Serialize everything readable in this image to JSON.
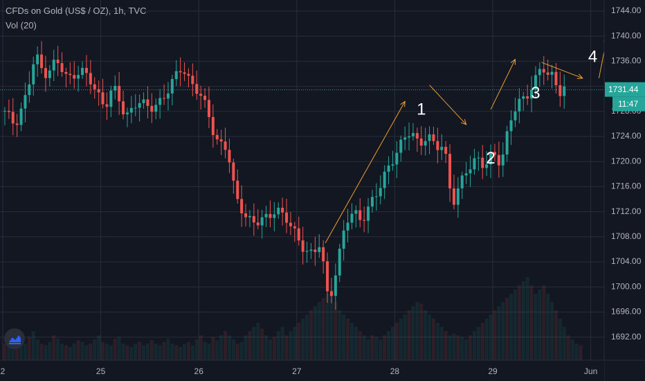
{
  "legend": {
    "title": "CFDs on Gold (US$ / OZ), 1h, TVC",
    "volume": "Vol (20)"
  },
  "price_tag": {
    "last": "1731.44",
    "countdown": "11:47",
    "color": "#26a69a"
  },
  "colors": {
    "background": "#131722",
    "grid": "#2a2e39",
    "up": "#26a69a",
    "down": "#ef5350",
    "annotation": "#f0a030",
    "text": "#b2b5be",
    "label_white": "#ffffff"
  },
  "icons": {
    "logo": "tradingview-logo-icon"
  },
  "chart_data": {
    "type": "candlestick",
    "instrument": "CFDs on Gold (US$ / OZ)",
    "interval": "1h",
    "source": "TVC",
    "xlabel": "",
    "ylabel": "",
    "ylim": [
      1689,
      1746
    ],
    "x_ticks": [
      {
        "label": "2",
        "t": 0
      },
      {
        "label": "25",
        "t": 24
      },
      {
        "label": "26",
        "t": 48
      },
      {
        "label": "27",
        "t": 72
      },
      {
        "label": "28",
        "t": 96
      },
      {
        "label": "29",
        "t": 120
      },
      {
        "label": "Jun",
        "t": 144
      }
    ],
    "y_ticks": [
      1692,
      1696,
      1700,
      1704,
      1708,
      1712,
      1716,
      1720,
      1724,
      1728,
      1732,
      1736,
      1740,
      1744
    ],
    "last_price": 1731.44,
    "grid": true,
    "overlay_labels": [
      {
        "text": "1",
        "t": 102.5,
        "price": 1728.2
      },
      {
        "text": "2",
        "t": 119.5,
        "price": 1720.4
      },
      {
        "text": "3",
        "t": 130.5,
        "price": 1730.8
      },
      {
        "text": "4",
        "t": 144.5,
        "price": 1736.6
      }
    ],
    "arrows": [
      {
        "from": [
          79,
          1707.0
        ],
        "to": [
          98.5,
          1729.6
        ]
      },
      {
        "from": [
          104.5,
          1732.2
        ],
        "to": [
          113.5,
          1725.9
        ]
      },
      {
        "from": [
          119.5,
          1728.3
        ],
        "to": [
          125.5,
          1736.3
        ]
      },
      {
        "from": [
          132,
          1735.8
        ],
        "to": [
          142,
          1733.3
        ]
      },
      {
        "from": [
          146,
          1733.3
        ],
        "to": [
          148,
          1739.9
        ]
      }
    ],
    "volume_pattern": [
      0.2,
      0.18,
      0.25,
      0.3,
      0.22,
      0.2,
      0.28,
      0.35,
      0.25,
      0.2,
      0.18,
      0.22,
      0.3,
      0.26,
      0.2,
      0.18,
      0.16,
      0.2,
      0.24,
      0.22,
      0.18,
      0.2,
      0.25,
      0.3,
      0.22,
      0.2,
      0.18,
      0.26,
      0.28,
      0.2,
      0.18,
      0.16,
      0.2,
      0.22,
      0.18,
      0.2,
      0.24,
      0.2,
      0.18,
      0.22,
      0.26,
      0.2,
      0.18,
      0.16,
      0.2,
      0.22,
      0.18,
      0.25,
      0.3,
      0.22,
      0.2,
      0.28,
      0.24,
      0.3,
      0.35,
      0.3,
      0.25,
      0.2,
      0.22,
      0.3,
      0.35,
      0.4,
      0.45,
      0.38,
      0.3,
      0.25,
      0.28,
      0.35,
      0.4,
      0.3,
      0.35,
      0.4,
      0.45,
      0.5,
      0.55,
      0.6,
      0.65,
      0.7,
      0.75,
      0.8,
      0.85,
      0.7,
      0.6,
      0.55,
      0.5,
      0.45,
      0.4,
      0.35,
      0.3,
      0.25,
      0.3,
      0.28,
      0.25,
      0.3,
      0.35,
      0.4,
      0.45,
      0.5,
      0.55,
      0.6,
      0.65,
      0.7,
      0.68,
      0.6,
      0.55,
      0.5,
      0.45,
      0.4,
      0.35,
      0.3,
      0.32,
      0.3,
      0.28,
      0.25,
      0.3,
      0.35,
      0.4,
      0.45,
      0.5,
      0.55,
      0.6,
      0.65,
      0.7,
      0.75,
      0.8,
      0.85,
      0.9,
      0.95,
      1.0,
      0.9,
      0.8,
      0.85,
      0.9,
      0.8,
      0.7,
      0.6,
      0.5,
      0.4,
      0.3,
      0.25,
      0.2,
      0.18
    ]
  }
}
